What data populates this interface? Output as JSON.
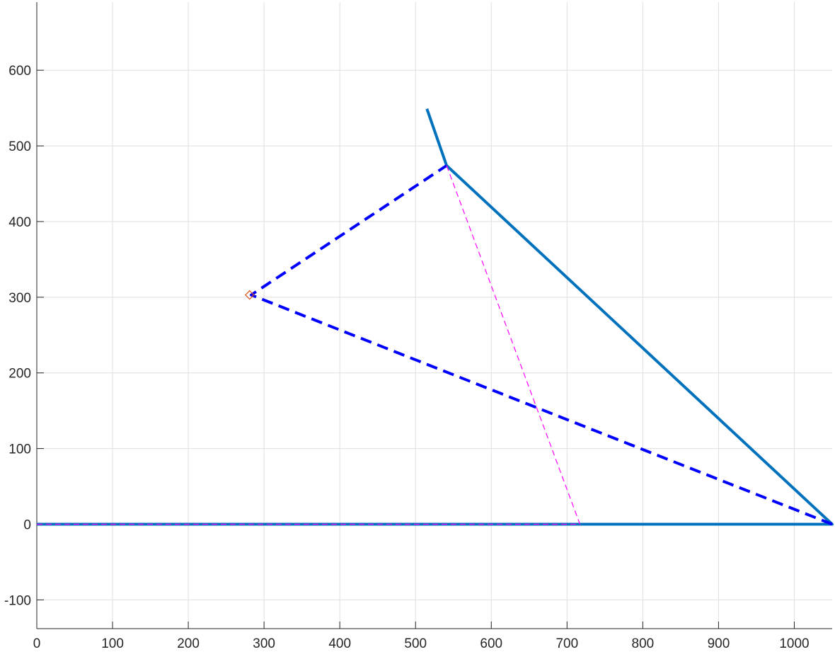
{
  "chart_data": {
    "type": "line",
    "title": "",
    "xlabel": "",
    "ylabel": "",
    "xlim": [
      0,
      1050
    ],
    "ylim": [
      -138,
      690
    ],
    "grid": true,
    "x_ticks": [
      0,
      100,
      200,
      300,
      400,
      500,
      600,
      700,
      800,
      900,
      1000
    ],
    "x_tick_labels": [
      "0",
      "100",
      "200",
      "300",
      "400",
      "500",
      "600",
      "700",
      "800",
      "900",
      "1000"
    ],
    "y_ticks": [
      -100,
      0,
      100,
      200,
      300,
      400,
      500,
      600
    ],
    "y_tick_labels": [
      "-100",
      "0",
      "100",
      "200",
      "300",
      "400",
      "500",
      "600"
    ],
    "series": [
      {
        "style": "solid",
        "color": "#0072bd",
        "x": [
          0,
          1050,
          541,
          515
        ],
        "y": [
          0,
          0,
          474,
          549
        ]
      },
      {
        "style": "dashed",
        "color": "#0000ff",
        "x": [
          1050,
          283,
          541
        ],
        "y": [
          0,
          303,
          474
        ]
      },
      {
        "style": "thin-dashed",
        "color": "#ff00ff",
        "x": [
          541,
          717
        ],
        "y": [
          474,
          0
        ]
      },
      {
        "style": "thin-dashed",
        "color": "#ff00ff",
        "x": [
          0,
          717
        ],
        "y": [
          0,
          0
        ]
      },
      {
        "style": "marker",
        "marker": "diamond",
        "color": "#d95319",
        "x": [
          281
        ],
        "y": [
          303
        ]
      }
    ]
  }
}
